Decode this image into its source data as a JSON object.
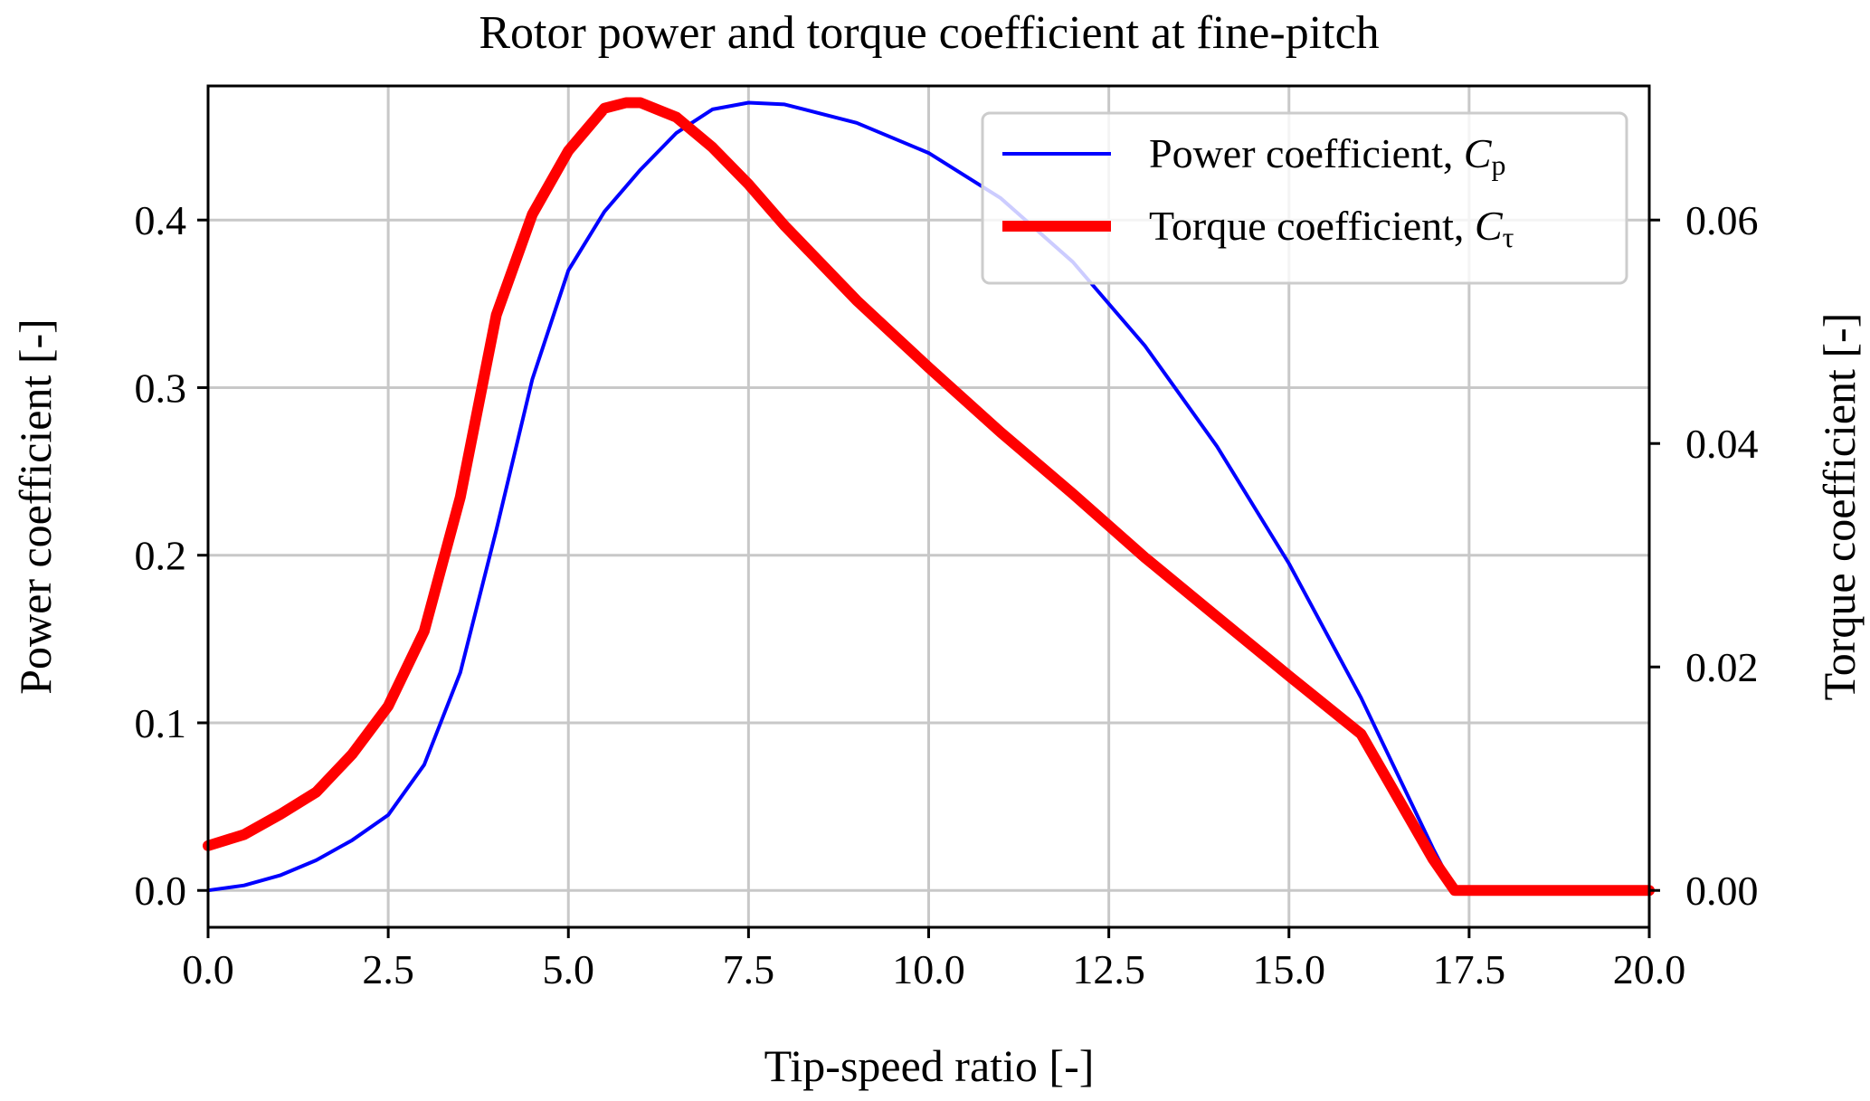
{
  "chart_data": {
    "type": "line",
    "title": "Rotor power and torque coefficient at fine-pitch",
    "xlabel": "Tip-speed ratio [-]",
    "ylabel": "Power coefficient [-]",
    "ylabel_right": "Torque coefficient [-]",
    "xlim": [
      0,
      20
    ],
    "ylim": [
      -0.022,
      0.48
    ],
    "ylim_right": [
      -0.0033,
      0.072
    ],
    "x_ticks": [
      "0.0",
      "2.5",
      "5.0",
      "7.5",
      "10.0",
      "12.5",
      "15.0",
      "17.5",
      "20.0"
    ],
    "x_tick_values": [
      0,
      2.5,
      5,
      7.5,
      10,
      12.5,
      15,
      17.5,
      20
    ],
    "y_ticks": [
      "0.0",
      "0.1",
      "0.2",
      "0.3",
      "0.4"
    ],
    "y_tick_values": [
      0,
      0.1,
      0.2,
      0.3,
      0.4
    ],
    "y_right_ticks": [
      "0.00",
      "0.02",
      "0.04",
      "0.06"
    ],
    "y_right_tick_values": [
      0,
      0.02,
      0.04,
      0.06
    ],
    "grid": true,
    "legend_position": "top-right",
    "legend": {
      "cp_text": "Power coefficient, ",
      "cp_symbol": "C",
      "cp_sub": "p",
      "ct_text": "Torque coefficient, ",
      "ct_symbol": "C",
      "ct_sub": "τ"
    },
    "series": [
      {
        "name": "Power coefficient, Cp",
        "axis": "left",
        "color": "#0000ff",
        "x": [
          0,
          0.5,
          1.0,
          1.5,
          2.0,
          2.5,
          3.0,
          3.5,
          4.0,
          4.5,
          5.0,
          5.5,
          6.0,
          6.5,
          7.0,
          7.5,
          8.0,
          9.0,
          10.0,
          11.0,
          12.0,
          13.0,
          14.0,
          15.0,
          16.0,
          17.0,
          17.3,
          17.5,
          20.0
        ],
        "values": [
          0.0,
          0.003,
          0.009,
          0.018,
          0.03,
          0.045,
          0.075,
          0.13,
          0.215,
          0.305,
          0.37,
          0.405,
          0.43,
          0.452,
          0.466,
          0.47,
          0.469,
          0.458,
          0.44,
          0.413,
          0.375,
          0.325,
          0.265,
          0.195,
          0.115,
          0.025,
          0.0,
          0.0,
          0.0
        ]
      },
      {
        "name": "Torque coefficient, Cτ",
        "axis": "right",
        "color": "#ff0000",
        "x": [
          0,
          0.5,
          1.0,
          1.5,
          2.0,
          2.5,
          3.0,
          3.5,
          4.0,
          4.5,
          5.0,
          5.5,
          5.8,
          6.0,
          6.5,
          7.0,
          7.5,
          8.0,
          9.0,
          10.0,
          11.0,
          12.0,
          13.0,
          14.0,
          15.0,
          16.0,
          17.0,
          17.3,
          17.5,
          20.0
        ],
        "values": [
          0.004,
          0.005,
          0.0068,
          0.0088,
          0.0122,
          0.0165,
          0.0232,
          0.0352,
          0.0515,
          0.0605,
          0.0662,
          0.07,
          0.0705,
          0.0705,
          0.0692,
          0.0665,
          0.0632,
          0.0595,
          0.0528,
          0.0468,
          0.041,
          0.0355,
          0.0298,
          0.0245,
          0.0192,
          0.014,
          0.0028,
          0.0,
          0.0,
          0.0
        ]
      }
    ]
  }
}
